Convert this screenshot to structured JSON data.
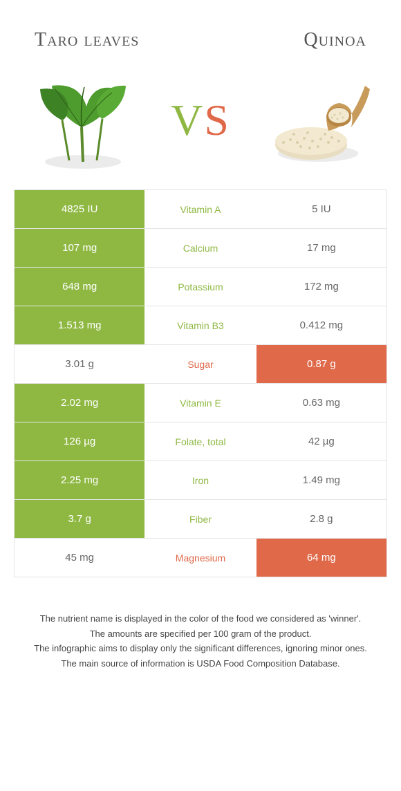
{
  "header": {
    "left_title": "Taro leaves",
    "right_title": "Quinoa"
  },
  "vs": {
    "v": "V",
    "s": "S"
  },
  "colors": {
    "green": "#8fb843",
    "orange": "#e0694a",
    "grey_text": "#666666",
    "border": "#e5e5e5",
    "white": "#ffffff"
  },
  "rows": [
    {
      "left": "4825 IU",
      "mid": "Vitamin A",
      "right": "5 IU",
      "winner": "left"
    },
    {
      "left": "107 mg",
      "mid": "Calcium",
      "right": "17 mg",
      "winner": "left"
    },
    {
      "left": "648 mg",
      "mid": "Potassium",
      "right": "172 mg",
      "winner": "left"
    },
    {
      "left": "1.513 mg",
      "mid": "Vitamin B3",
      "right": "0.412 mg",
      "winner": "left"
    },
    {
      "left": "3.01 g",
      "mid": "Sugar",
      "right": "0.87 g",
      "winner": "right"
    },
    {
      "left": "2.02 mg",
      "mid": "Vitamin E",
      "right": "0.63 mg",
      "winner": "left"
    },
    {
      "left": "126 µg",
      "mid": "Folate, total",
      "right": "42 µg",
      "winner": "left"
    },
    {
      "left": "2.25 mg",
      "mid": "Iron",
      "right": "1.49 mg",
      "winner": "left"
    },
    {
      "left": "3.7 g",
      "mid": "Fiber",
      "right": "2.8 g",
      "winner": "left"
    },
    {
      "left": "45 mg",
      "mid": "Magnesium",
      "right": "64 mg",
      "winner": "right"
    }
  ],
  "footer": {
    "line1": "The nutrient name is displayed in the color of the food we considered as 'winner'.",
    "line2": "The amounts are specified per 100 gram of the product.",
    "line3": "The infographic aims to display only the significant differences, ignoring minor ones.",
    "line4": "The main source of information is USDA Food Composition Database."
  }
}
